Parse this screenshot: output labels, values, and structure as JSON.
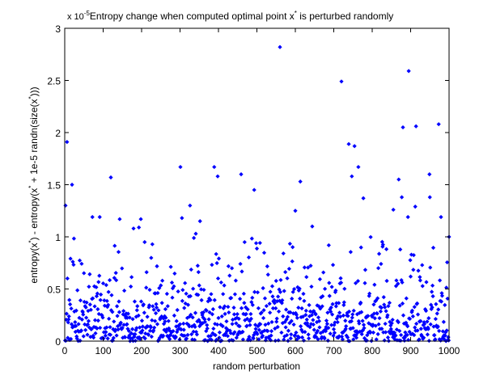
{
  "figure": {
    "background": "#ffffff",
    "axes_color": "#000000",
    "marker_color": "#0000ff"
  },
  "chart_data": {
    "type": "scatter",
    "title": "Entropy change when computed optimal point x* is perturbed randomly",
    "title_parts": {
      "main_a": "Entropy change when computed optimal point x",
      "sup": "*",
      "main_b": " is perturbed randomly"
    },
    "exponent_label": {
      "base": "x 10",
      "exp": "-5"
    },
    "xlabel": "random perturbation",
    "ylabel": "entropy(x*) - entropy(x* + 1e-5 randn(size(x*)))",
    "ylabel_parts": [
      "entropy(x",
      "*",
      ") - entropy(x",
      "*",
      " + 1e-5 randn(size(x",
      "*",
      ")))"
    ],
    "xlim": [
      0,
      1000
    ],
    "ylim": [
      0,
      3
    ],
    "y_scale_factor": "1e-5",
    "xticks": [
      0,
      100,
      200,
      300,
      400,
      500,
      600,
      700,
      800,
      900,
      1000
    ],
    "xtick_labels": [
      "0",
      "100",
      "200",
      "300",
      "400",
      "500",
      "600",
      "700",
      "800",
      "900",
      "1000"
    ],
    "yticks": [
      0,
      0.5,
      1,
      1.5,
      2,
      2.5,
      3
    ],
    "ytick_labels": [
      "0",
      "0.5",
      "1",
      "1.5",
      "2",
      "2.5",
      "3"
    ],
    "grid": false,
    "legend": null,
    "marker": "diamond",
    "n_points": 1000,
    "bulk_distribution": {
      "kind": "exponential",
      "mean": 0.27,
      "max": 1.0,
      "seed": 12345
    },
    "outliers": [
      {
        "x": 2,
        "y": 1.3
      },
      {
        "x": 6,
        "y": 1.91
      },
      {
        "x": 19,
        "y": 1.5
      },
      {
        "x": 72,
        "y": 1.19
      },
      {
        "x": 91,
        "y": 1.19
      },
      {
        "x": 120,
        "y": 1.57
      },
      {
        "x": 143,
        "y": 1.17
      },
      {
        "x": 179,
        "y": 1.08
      },
      {
        "x": 193,
        "y": 1.09
      },
      {
        "x": 198,
        "y": 1.17
      },
      {
        "x": 301,
        "y": 1.67
      },
      {
        "x": 305,
        "y": 1.18
      },
      {
        "x": 326,
        "y": 1.3
      },
      {
        "x": 341,
        "y": 1.03
      },
      {
        "x": 352,
        "y": 1.15
      },
      {
        "x": 389,
        "y": 1.67
      },
      {
        "x": 398,
        "y": 1.58
      },
      {
        "x": 459,
        "y": 1.6
      },
      {
        "x": 493,
        "y": 1.45
      },
      {
        "x": 560,
        "y": 2.82
      },
      {
        "x": 600,
        "y": 1.25
      },
      {
        "x": 613,
        "y": 1.53
      },
      {
        "x": 644,
        "y": 1.1
      },
      {
        "x": 720,
        "y": 2.49
      },
      {
        "x": 739,
        "y": 1.89
      },
      {
        "x": 747,
        "y": 1.58
      },
      {
        "x": 754,
        "y": 1.87
      },
      {
        "x": 764,
        "y": 1.67
      },
      {
        "x": 777,
        "y": 1.37
      },
      {
        "x": 855,
        "y": 1.26
      },
      {
        "x": 869,
        "y": 1.55
      },
      {
        "x": 877,
        "y": 1.38
      },
      {
        "x": 880,
        "y": 2.05
      },
      {
        "x": 893,
        "y": 1.19
      },
      {
        "x": 895,
        "y": 2.59
      },
      {
        "x": 912,
        "y": 1.29
      },
      {
        "x": 914,
        "y": 2.06
      },
      {
        "x": 949,
        "y": 1.6
      },
      {
        "x": 950,
        "y": 1.38
      },
      {
        "x": 973,
        "y": 2.08
      },
      {
        "x": 979,
        "y": 1.19
      },
      {
        "x": 1000,
        "y": 1.0
      }
    ]
  }
}
